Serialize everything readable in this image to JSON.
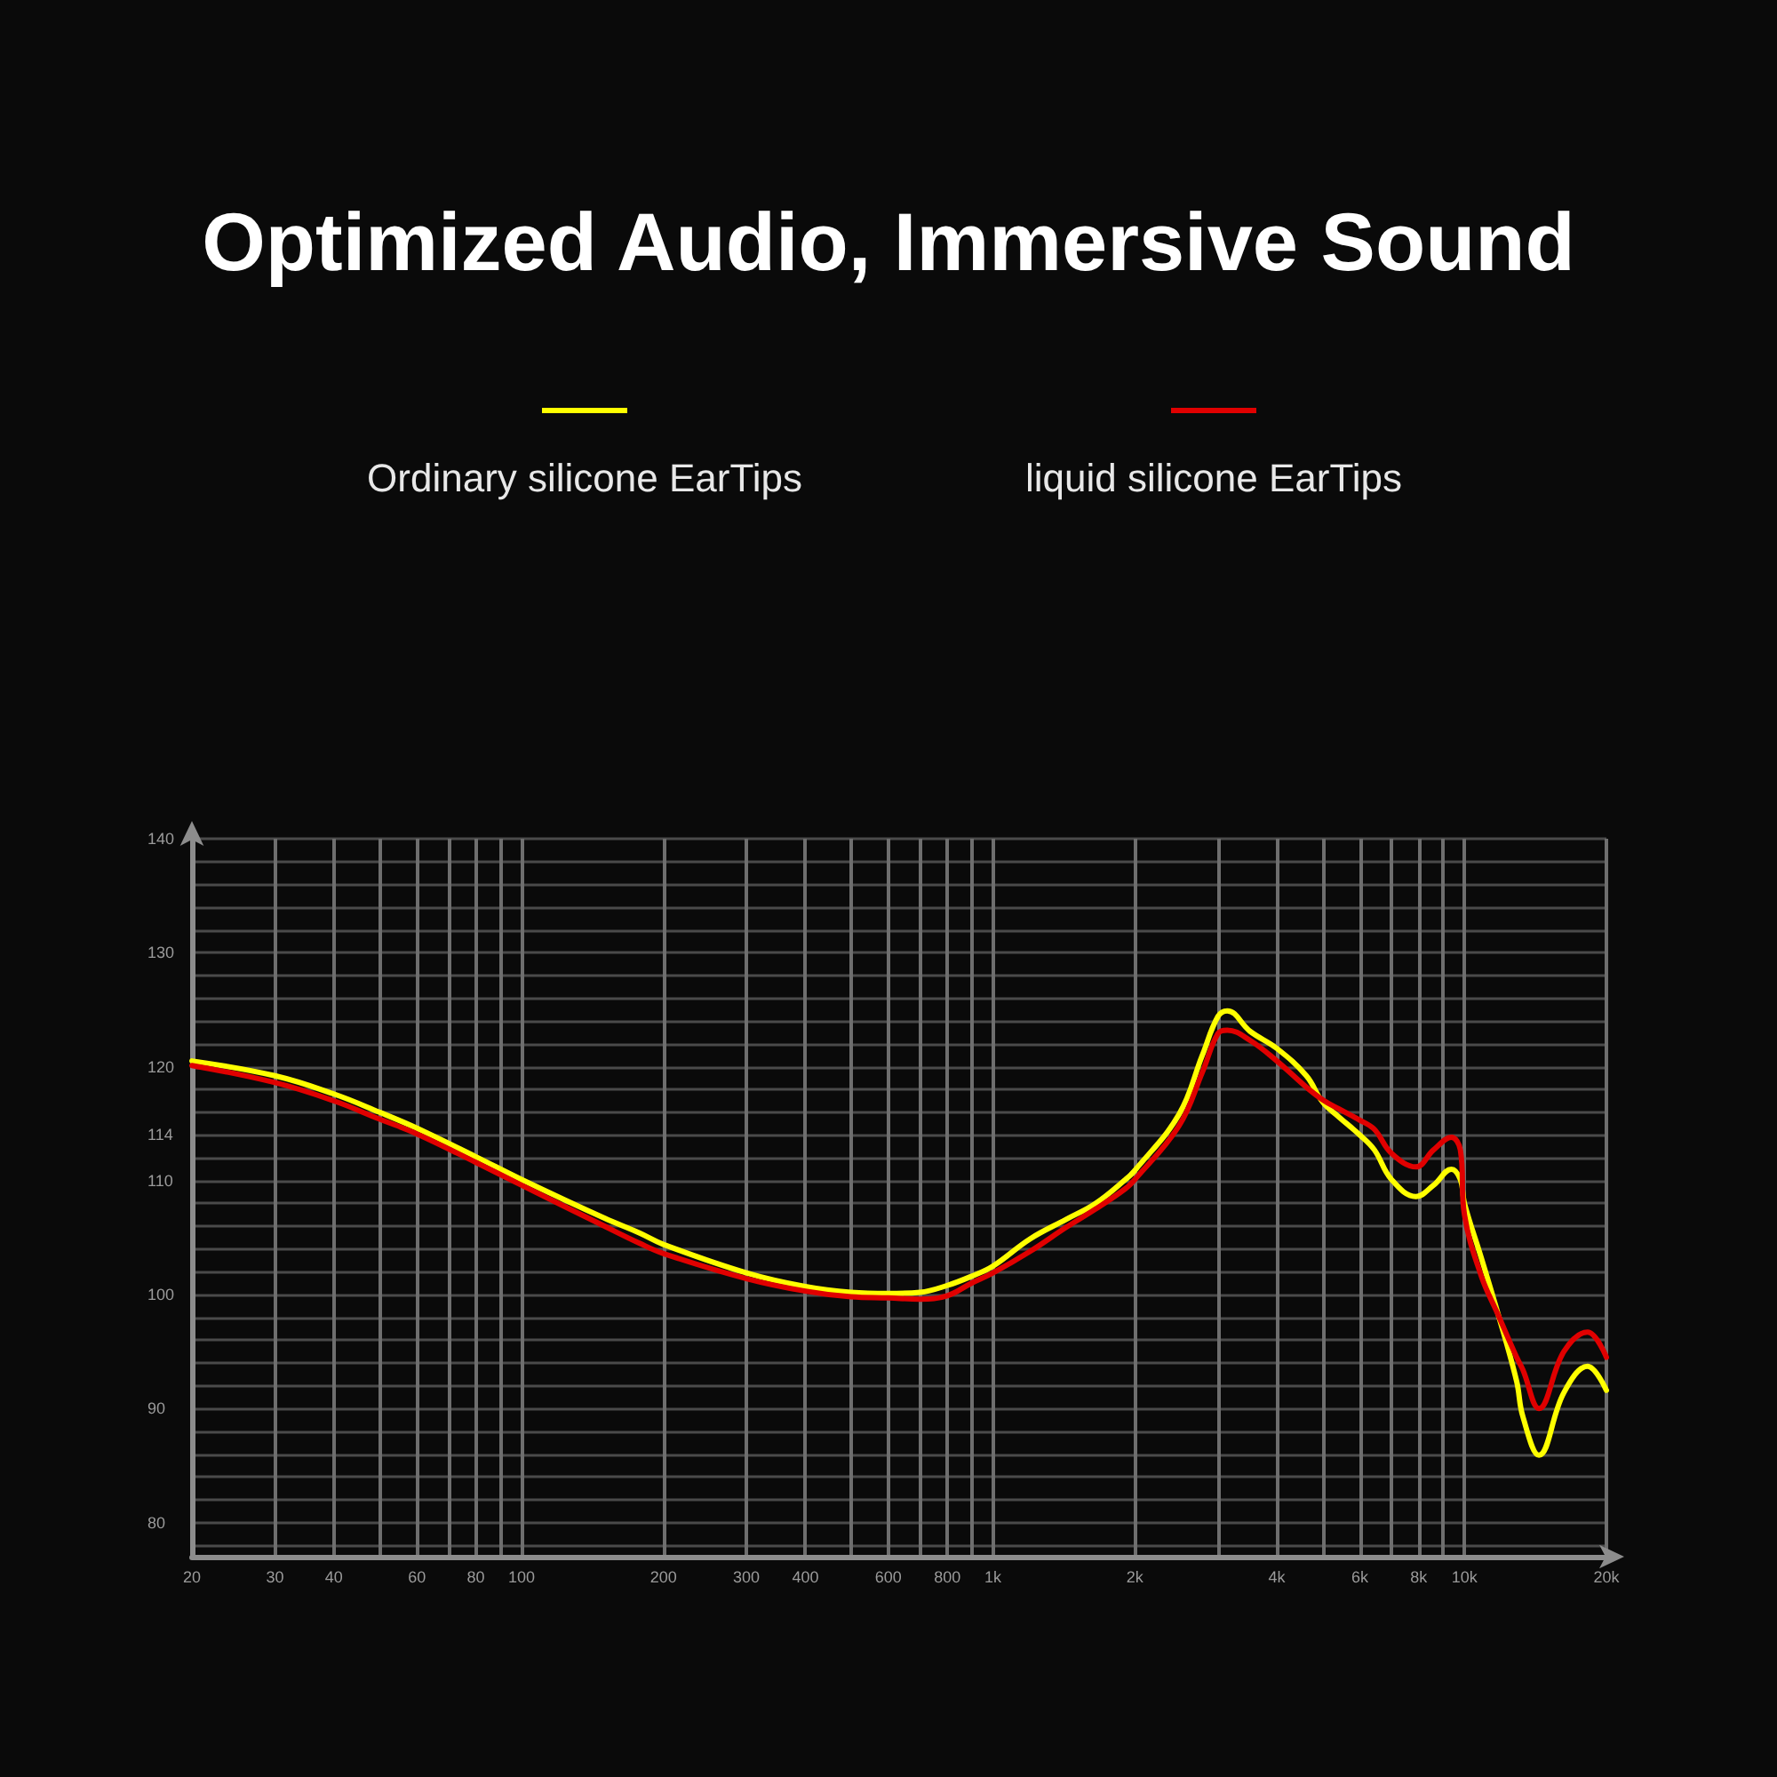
{
  "chart_data": {
    "type": "line",
    "title": "Optimized Audio, Immersive Sound",
    "x": [
      20,
      30,
      40,
      50,
      60,
      80,
      100,
      150,
      178,
      200,
      300,
      400,
      500,
      600,
      700,
      800,
      900,
      1000,
      1200,
      1430,
      1650,
      1910,
      2000,
      2480,
      2780,
      3000,
      3140,
      3510,
      4000,
      4620,
      5000,
      5410,
      6000,
      6440,
      7000,
      7890,
      8600,
      9380,
      9800,
      10000,
      10840,
      11820,
      12900,
      13300,
      14390,
      16250,
      18240,
      20000
    ],
    "series": [
      {
        "name": "Ordinary silicone EarTips",
        "color": "#ffff00",
        "values": [
          120.5,
          119.2,
          117.6,
          116.0,
          114.6,
          112.1,
          110.1,
          106.7,
          105.4,
          104.4,
          101.9,
          100.7,
          100.2,
          100.1,
          100.2,
          100.8,
          101.6,
          102.5,
          104.9,
          106.6,
          108.0,
          110.1,
          110.9,
          115.8,
          121.0,
          124.4,
          124.9,
          123.1,
          121.6,
          119.2,
          116.9,
          115.6,
          114.0,
          112.7,
          110.1,
          108.6,
          109.6,
          111.0,
          110.1,
          108.0,
          103.3,
          98.1,
          92.4,
          89.3,
          85.9,
          91.4,
          93.7,
          91.6
        ]
      },
      {
        "name": "liquid silicone EarTips",
        "color": "#e00000",
        "values": [
          120.1,
          118.6,
          117.0,
          115.4,
          114.1,
          111.6,
          109.6,
          106.0,
          104.5,
          103.6,
          101.4,
          100.3,
          99.8,
          99.7,
          99.6,
          99.9,
          101.0,
          101.9,
          103.8,
          105.9,
          107.5,
          109.3,
          110.1,
          114.8,
          119.5,
          122.9,
          123.2,
          122.3,
          120.5,
          118.2,
          117.1,
          116.3,
          115.3,
          114.5,
          112.4,
          111.2,
          112.7,
          113.8,
          112.7,
          107.0,
          101.7,
          98.1,
          94.5,
          93.4,
          90.0,
          95.0,
          96.7,
          94.5
        ]
      }
    ],
    "xlim": [
      20,
      20000
    ],
    "xticks": [
      20,
      30,
      40,
      {
        "value": 50,
        "label": null
      },
      60,
      {
        "value": 70,
        "label": null
      },
      80,
      {
        "value": 90,
        "label": null
      },
      100,
      200,
      300,
      400,
      {
        "value": 500,
        "label": null
      },
      600,
      {
        "value": 700,
        "label": null
      },
      800,
      {
        "value": 900,
        "label": null
      },
      {
        "value": 1000,
        "label": "1k"
      },
      {
        "value": 2000,
        "label": "2k"
      },
      {
        "value": 3000,
        "label": null
      },
      {
        "value": 4000,
        "label": "4k"
      },
      {
        "value": 5000,
        "label": null
      },
      {
        "value": 6000,
        "label": "6k"
      },
      {
        "value": 7000,
        "label": null
      },
      {
        "value": 8000,
        "label": "8k"
      },
      {
        "value": 9000,
        "label": null
      },
      {
        "value": 10000,
        "label": "10k"
      },
      {
        "value": 20000,
        "label": "20k"
      }
    ],
    "ylim": [
      77,
      140
    ],
    "yticks": [
      {
        "value": 78,
        "label": null
      },
      80,
      {
        "value": 82,
        "label": null
      },
      {
        "value": 84,
        "label": null
      },
      {
        "value": 86,
        "label": null
      },
      {
        "value": 88,
        "label": null
      },
      90,
      {
        "value": 92,
        "label": null
      },
      {
        "value": 94,
        "label": null
      },
      {
        "value": 96,
        "label": null
      },
      {
        "value": 98,
        "label": null
      },
      100,
      {
        "value": 102,
        "label": null
      },
      {
        "value": 104,
        "label": null
      },
      {
        "value": 106,
        "label": null
      },
      {
        "value": 108,
        "label": null
      },
      110,
      {
        "value": 112,
        "label": null
      },
      114,
      {
        "value": 116,
        "label": null
      },
      {
        "value": 118,
        "label": null
      },
      120,
      {
        "value": 122,
        "label": null
      },
      {
        "value": 124,
        "label": null
      },
      {
        "value": 126,
        "label": null
      },
      {
        "value": 128,
        "label": null
      },
      130,
      {
        "value": 132,
        "label": null
      },
      {
        "value": 134,
        "label": null
      },
      {
        "value": 136,
        "label": null
      },
      {
        "value": 138,
        "label": null
      },
      140
    ],
    "log": "x",
    "grid": true,
    "legend": "top",
    "marker": "none",
    "line_style": "solid"
  }
}
